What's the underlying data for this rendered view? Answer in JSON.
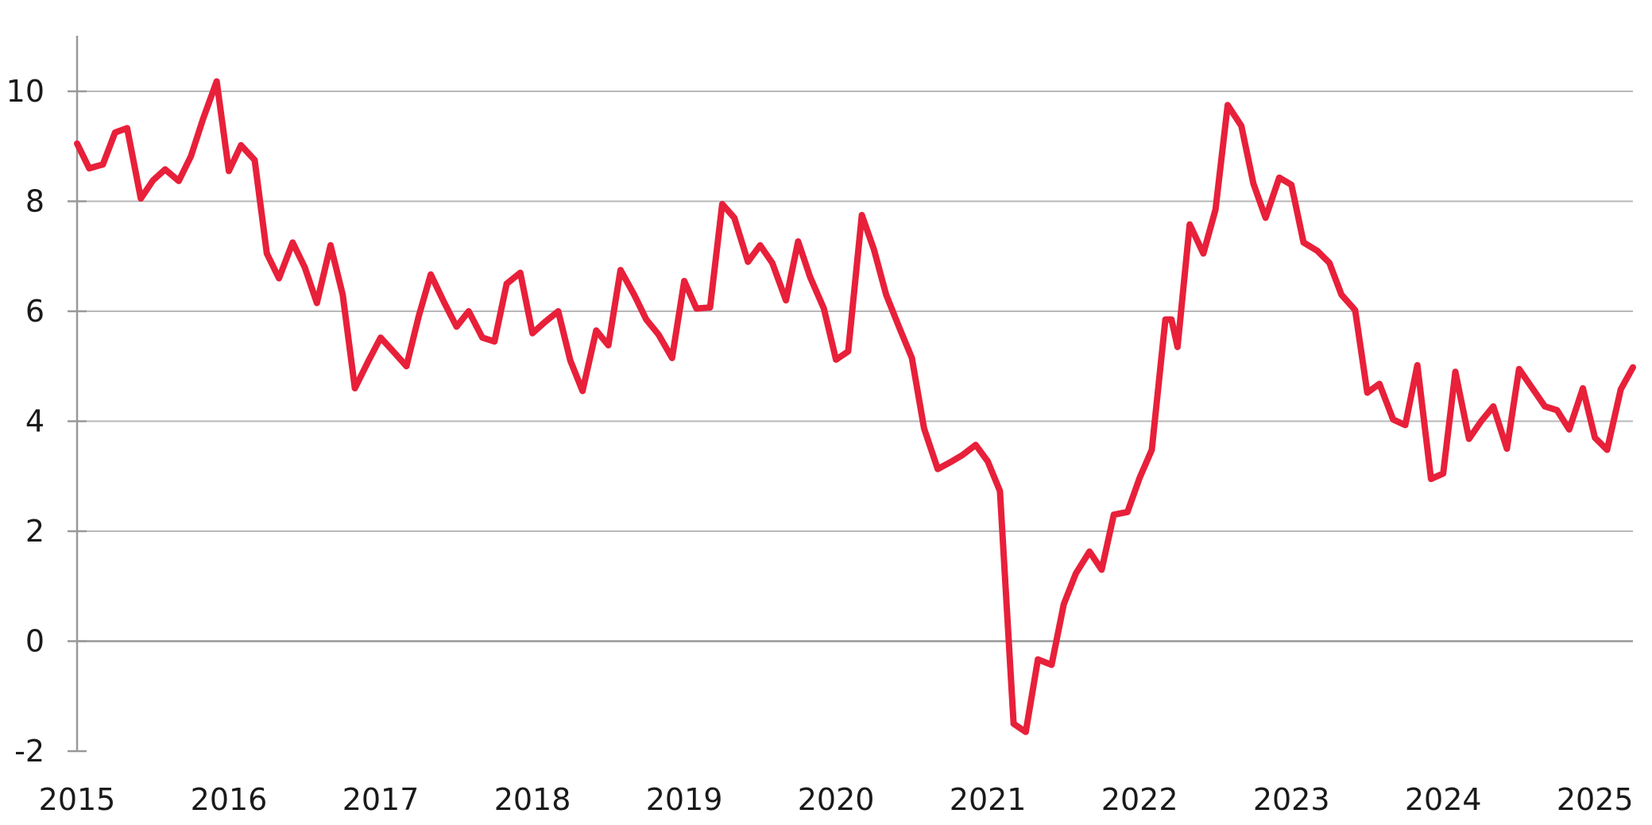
{
  "chart_data": {
    "type": "line",
    "title": "",
    "xlabel": "",
    "ylabel": "",
    "xlim": [
      2015.0,
      2025.25
    ],
    "ylim": [
      -2,
      11
    ],
    "y_ticks": [
      -2,
      0,
      2,
      4,
      6,
      8,
      10
    ],
    "y_tick_labels": [
      "-2",
      "0",
      "2",
      "4",
      "6",
      "8",
      "10"
    ],
    "x_ticks": [
      2015,
      2016,
      2017,
      2018,
      2019,
      2020,
      2021,
      2022,
      2023,
      2024,
      2025
    ],
    "x_tick_labels": [
      "2015",
      "2016",
      "2017",
      "2018",
      "2019",
      "2020",
      "2021",
      "2022",
      "2023",
      "2024",
      "2025"
    ],
    "grid": true,
    "legend": "none",
    "colors": {
      "line": "#e8203a",
      "grid": "#b8b8b8",
      "axis": "#999999"
    },
    "series": [
      {
        "x": [
          2015.0,
          2015.08,
          2015.17,
          2015.25,
          2015.33,
          2015.42,
          2015.5,
          2015.58,
          2015.67,
          2015.75,
          2015.83,
          2015.92,
          2016.0,
          2016.08,
          2016.17,
          2016.25,
          2016.33,
          2016.42,
          2016.5,
          2016.58,
          2016.67,
          2016.75,
          2016.83,
          2016.92,
          2017.0,
          2017.08,
          2017.17,
          2017.25,
          2017.33,
          2017.42,
          2017.5,
          2017.58,
          2017.67,
          2017.75,
          2017.83,
          2017.92,
          2018.0,
          2018.08,
          2018.17,
          2018.25,
          2018.33,
          2018.42,
          2018.5,
          2018.58,
          2018.67,
          2018.75,
          2018.83,
          2018.92,
          2019.0,
          2019.08,
          2019.17,
          2019.25,
          2019.33,
          2019.42,
          2019.5,
          2019.58,
          2019.67,
          2019.75,
          2019.83,
          2019.92,
          2020.0,
          2020.08,
          2020.17,
          2020.25,
          2020.33,
          2020.42,
          2020.5,
          2020.58,
          2020.67,
          2020.75,
          2020.83,
          2020.92,
          2021.0,
          2021.08,
          2021.17,
          2021.25,
          2021.33,
          2021.42,
          2021.5,
          2021.58,
          2021.67,
          2021.75,
          2021.83,
          2021.92,
          2022.0,
          2022.08,
          2022.17,
          2022.21,
          2022.25,
          2022.33,
          2022.42,
          2022.5,
          2022.58,
          2022.67,
          2022.75,
          2022.83,
          2022.92,
          2023.0,
          2023.08,
          2023.17,
          2023.25,
          2023.33,
          2023.42,
          2023.5,
          2023.58,
          2023.67,
          2023.75,
          2023.83,
          2023.92,
          2024.0,
          2024.08,
          2024.17,
          2024.25,
          2024.33,
          2024.42,
          2024.5,
          2024.58,
          2024.67,
          2024.75,
          2024.83,
          2024.92,
          2025.0,
          2025.08,
          2025.17,
          2025.25
        ],
        "values": [
          9.05,
          8.6,
          8.67,
          9.25,
          9.33,
          8.05,
          8.38,
          8.58,
          8.37,
          8.82,
          9.5,
          10.18,
          8.55,
          9.02,
          8.75,
          7.05,
          6.6,
          7.25,
          6.8,
          6.15,
          7.2,
          6.3,
          4.6,
          5.1,
          5.52,
          5.28,
          5.0,
          5.9,
          6.67,
          6.15,
          5.72,
          6.0,
          5.52,
          5.45,
          6.5,
          6.7,
          5.6,
          5.8,
          6.0,
          5.1,
          4.55,
          5.65,
          5.38,
          6.75,
          6.3,
          5.85,
          5.58,
          5.15,
          6.55,
          6.05,
          6.07,
          7.95,
          7.7,
          6.9,
          7.2,
          6.88,
          6.2,
          7.27,
          6.62,
          6.05,
          5.12,
          5.27,
          7.75,
          7.12,
          6.3,
          5.68,
          5.15,
          3.87,
          3.13,
          3.25,
          3.38,
          3.57,
          3.27,
          2.73,
          -1.5,
          -1.65,
          -0.33,
          -0.43,
          0.67,
          1.23,
          1.63,
          1.3,
          2.3,
          2.35,
          2.97,
          3.48,
          5.85,
          5.85,
          5.35,
          7.58,
          7.05,
          7.85,
          9.75,
          9.37,
          8.32,
          7.7,
          8.43,
          8.3,
          7.25,
          7.1,
          6.88,
          6.3,
          6.02,
          4.52,
          4.68,
          4.03,
          3.93,
          5.02,
          2.95,
          3.05,
          4.9,
          3.68,
          4.0,
          4.27,
          3.5,
          4.95,
          4.63,
          4.27,
          4.2,
          3.85,
          4.6,
          3.7,
          3.48,
          4.58,
          4.98
        ]
      }
    ]
  }
}
